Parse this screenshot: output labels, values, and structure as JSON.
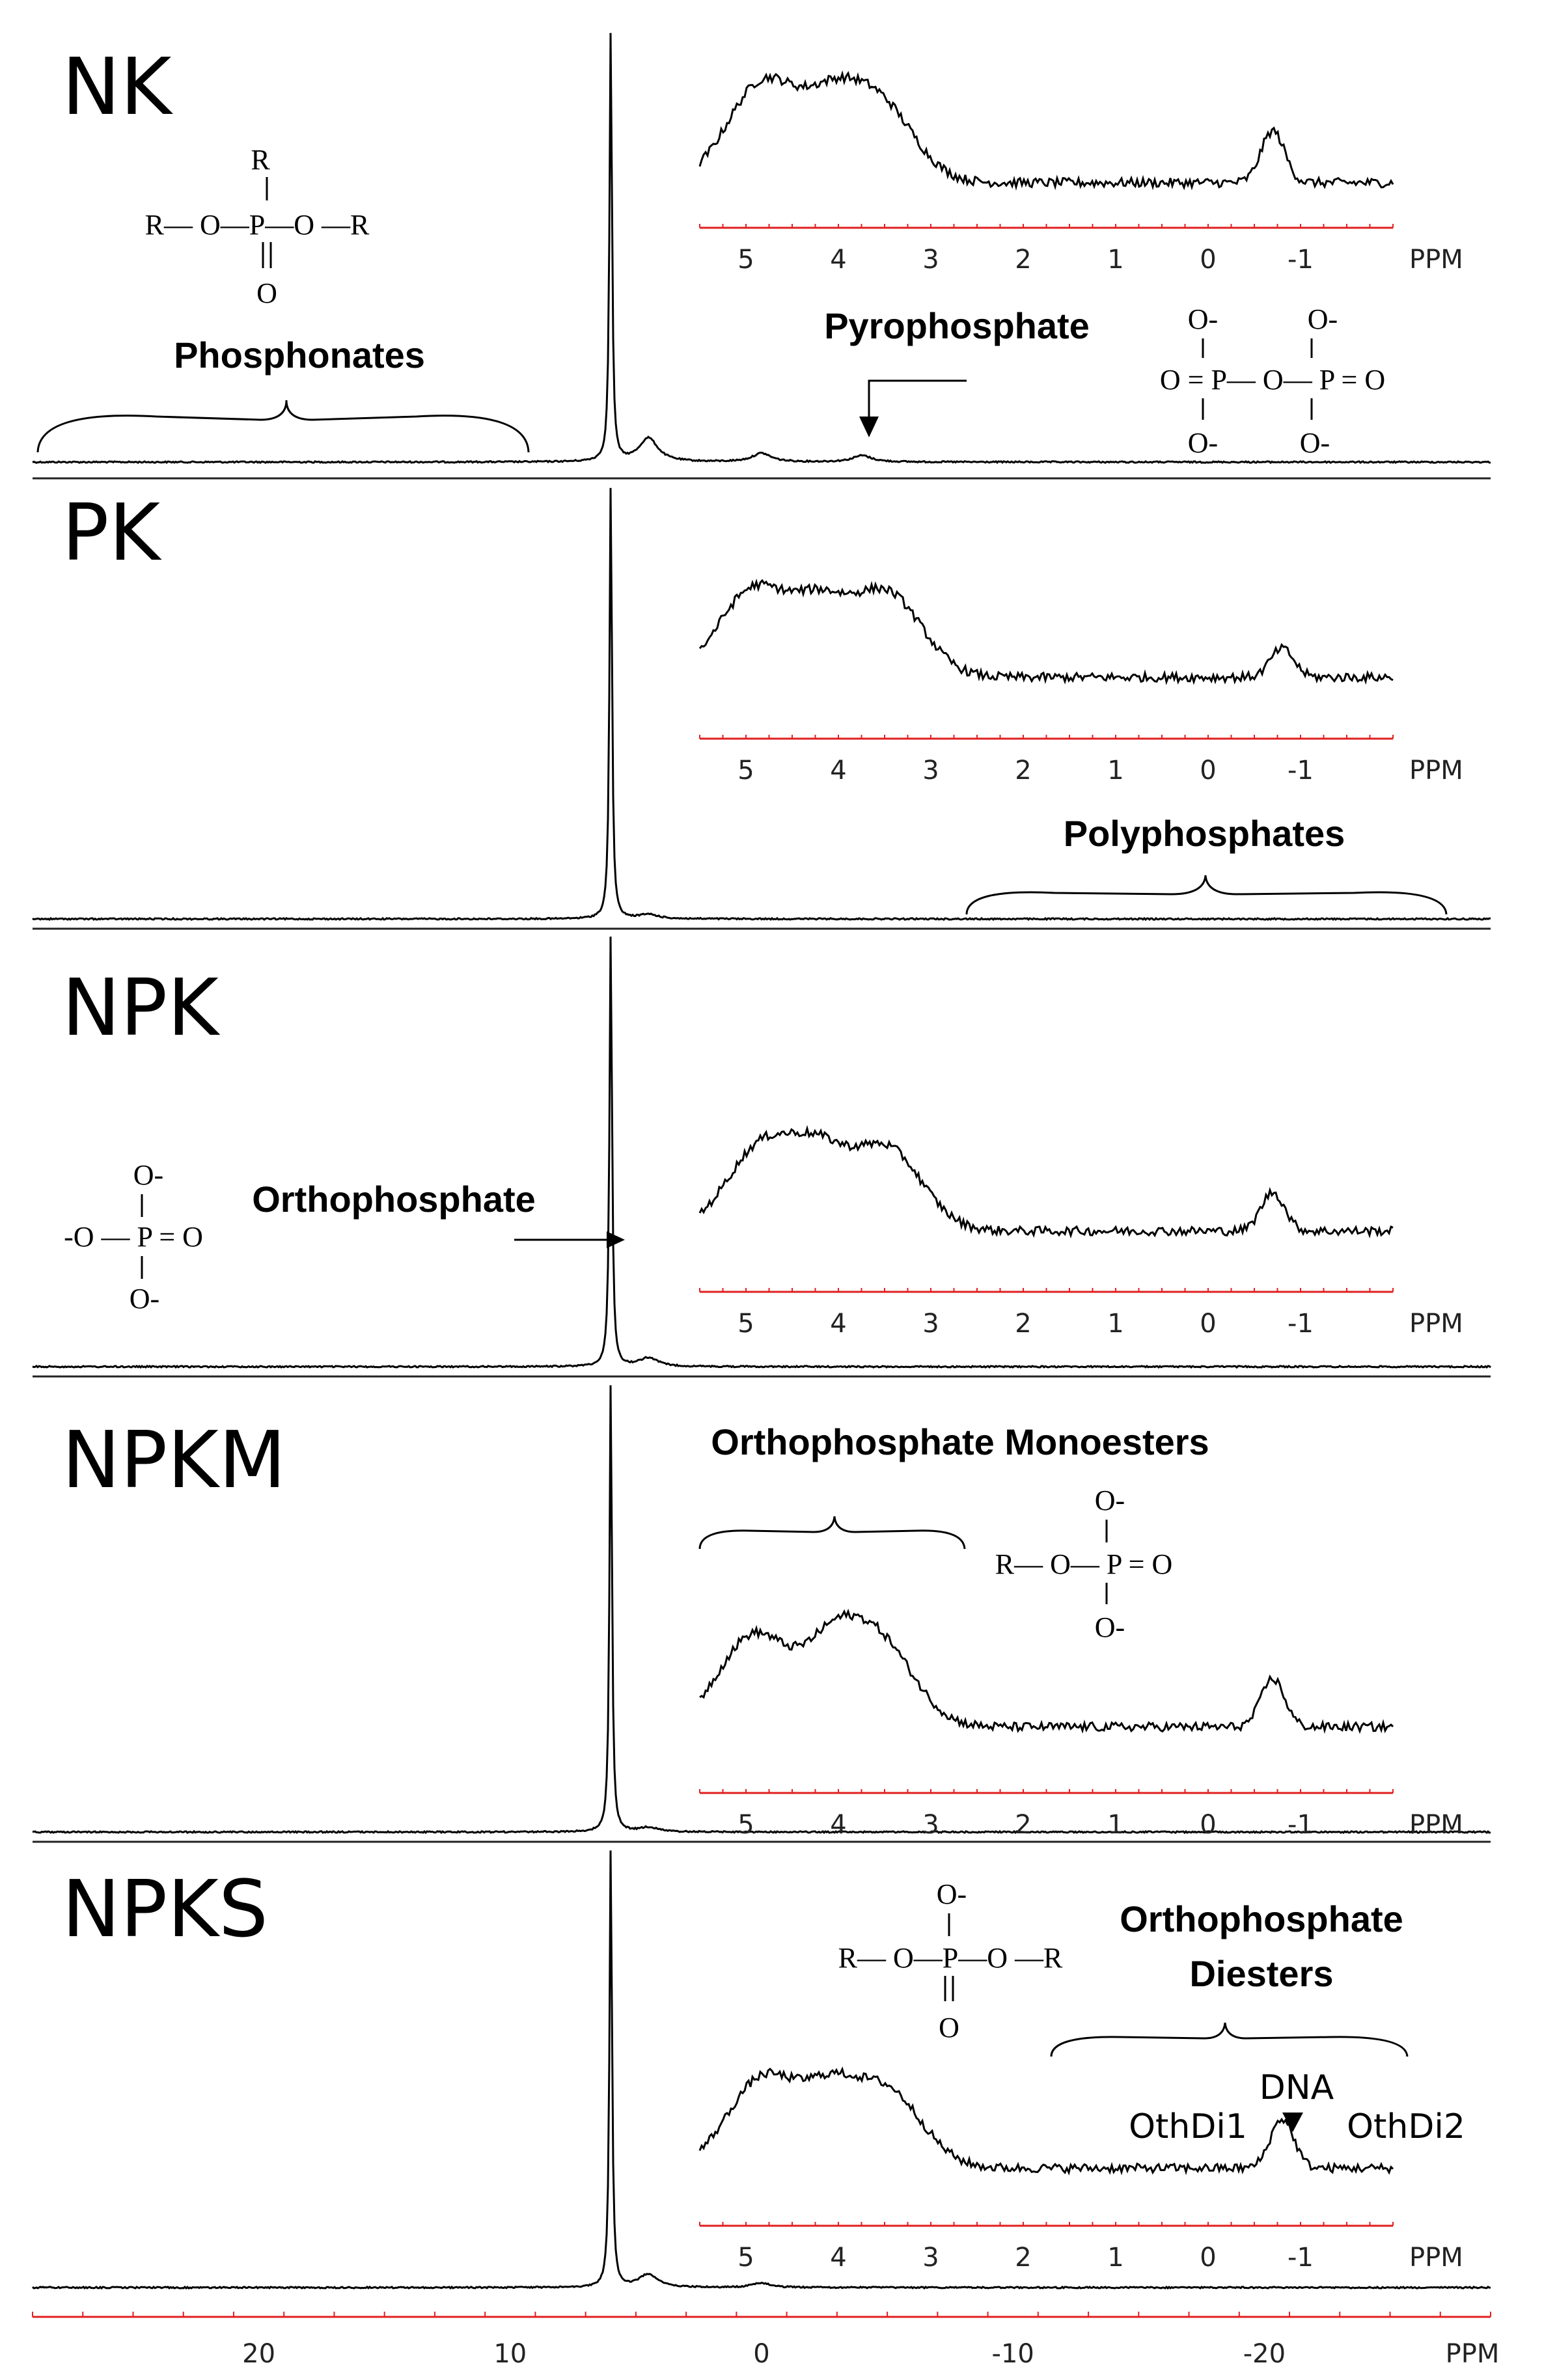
{
  "chart_data": {
    "type": "line",
    "xlabel": "PPM",
    "x_direction": "descending",
    "xlim": [
      29,
      -29
    ],
    "x_ticks": [
      {
        "label": "20",
        "value": 20
      },
      {
        "label": "10",
        "value": 10
      },
      {
        "label": "0",
        "value": 0
      },
      {
        "label": "-10",
        "value": -10
      },
      {
        "label": "-20",
        "value": -20
      }
    ],
    "inset_xlabel": "PPM",
    "inset_xlim": [
      5.5,
      -2
    ],
    "inset_ticks": [
      {
        "label": "5",
        "value": 5
      },
      {
        "label": "4",
        "value": 4
      },
      {
        "label": "3",
        "value": 3
      },
      {
        "label": "2",
        "value": 2
      },
      {
        "label": "1",
        "value": 1
      },
      {
        "label": "0",
        "value": 0
      },
      {
        "label": "-1",
        "value": -1
      }
    ],
    "main_peak_ppm": 6.0,
    "panels": [
      {
        "name": "NK",
        "peaks": [
          {
            "ppm": 6.0,
            "height": 1.0
          },
          {
            "ppm": 4.5,
            "height": 0.055
          },
          {
            "ppm": 0.0,
            "height": 0.02
          },
          {
            "ppm": -4.0,
            "height": 0.015
          }
        ],
        "inset_peaks": [
          {
            "ppm": 4.8,
            "height": 0.55
          },
          {
            "ppm": 4.1,
            "height": 0.25
          },
          {
            "ppm": 3.6,
            "height": 0.45
          },
          {
            "ppm": -0.7,
            "height": 0.28
          }
        ],
        "inset_baseline": 0.05
      },
      {
        "name": "PK",
        "peaks": [
          {
            "ppm": 6.0,
            "height": 1.0
          },
          {
            "ppm": 4.5,
            "height": 0.01
          }
        ],
        "inset_peaks": [
          {
            "ppm": 4.9,
            "height": 0.5
          },
          {
            "ppm": 4.2,
            "height": 0.3
          },
          {
            "ppm": 3.5,
            "height": 0.48
          },
          {
            "ppm": -0.8,
            "height": 0.16
          }
        ],
        "inset_baseline": 0.07
      },
      {
        "name": "NPK",
        "peaks": [
          {
            "ppm": 6.0,
            "height": 1.0
          },
          {
            "ppm": 4.5,
            "height": 0.02
          }
        ],
        "inset_peaks": [
          {
            "ppm": 4.8,
            "height": 0.5
          },
          {
            "ppm": 4.2,
            "height": 0.3
          },
          {
            "ppm": 3.5,
            "height": 0.48
          },
          {
            "ppm": -0.7,
            "height": 0.22
          }
        ],
        "inset_baseline": 0.05
      },
      {
        "name": "NPKM",
        "peaks": [
          {
            "ppm": 6.0,
            "height": 1.0
          },
          {
            "ppm": 4.5,
            "height": 0.01
          }
        ],
        "inset_peaks": [
          {
            "ppm": 4.9,
            "height": 0.52
          },
          {
            "ppm": 4.1,
            "height": 0.3
          },
          {
            "ppm": 3.6,
            "height": 0.5
          },
          {
            "ppm": -0.7,
            "height": 0.27
          }
        ],
        "inset_baseline": 0.06
      },
      {
        "name": "NPKS",
        "peaks": [
          {
            "ppm": 6.0,
            "height": 1.0
          },
          {
            "ppm": 4.5,
            "height": 0.03
          },
          {
            "ppm": 0.0,
            "height": 0.01
          }
        ],
        "inset_peaks": [
          {
            "ppm": 4.8,
            "height": 0.52
          },
          {
            "ppm": 4.1,
            "height": 0.3
          },
          {
            "ppm": 3.5,
            "height": 0.45
          },
          {
            "ppm": -0.8,
            "height": 0.28
          }
        ],
        "inset_baseline": 0.05
      }
    ],
    "annotations": {
      "phosphonates": "Phosphonates",
      "pyrophosphate": "Pyrophosphate",
      "polyphosphates": "Polyphosphates",
      "orthophosphate": "Orthophosphate",
      "orthophosphate_monoesters": "Orthophosphate  Monoesters",
      "orthophosphate_diesters_line1": "Orthophosphate",
      "orthophosphate_diesters_line2": "Diesters",
      "dna": "DNA",
      "othdi1": "OthDi1",
      "othdi2": "OthDi2"
    },
    "structures": {
      "phosphonate": {
        "r": "R",
        "row": "R— O—P—O —R",
        "o": "O"
      },
      "pyrophosphate": {
        "top1": "O-",
        "top2": "O-",
        "row": "O = P—  O— P = O",
        "bot1": "O-",
        "bot2": "O-"
      },
      "orthophosphate": {
        "top": "O-",
        "row": "-O — P = O",
        "bot": "O-"
      },
      "monoester": {
        "top": "O-",
        "row": "R— O—  P = O",
        "bot": "O-"
      },
      "diester": {
        "top": "O-",
        "row": "R— O—P—O —R",
        "bot": "O"
      }
    }
  }
}
